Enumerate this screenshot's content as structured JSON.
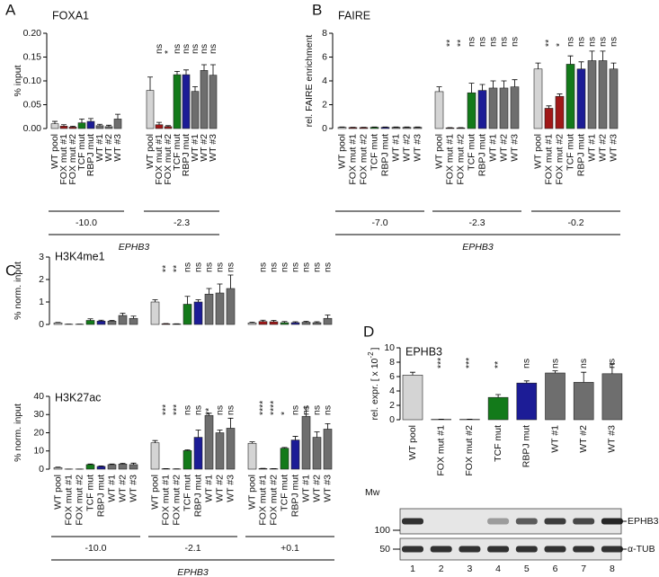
{
  "chart_data": [
    {
      "type": "bar",
      "panel": "A",
      "title": "FOXA1",
      "ylabel": "% input",
      "ylim": [
        0,
        0.2
      ],
      "yticks": [
        {
          "value": 0,
          "label": "0.00"
        },
        0.05,
        {
          "value": 0.1,
          "label": "0.10"
        },
        0.15,
        {
          "value": 0.2,
          "label": "0.20"
        }
      ],
      "colors": [
        "#d4d4d4",
        "#a01818",
        "#a01818",
        "#137a1a",
        "#1c1c96",
        "#6e6e6e",
        "#6e6e6e",
        "#6e6e6e"
      ],
      "group_axis_label": "EPHB3",
      "groups": [
        {
          "label": "-10.0",
          "categories": [
            "WT pool",
            "FOX mut #1",
            "FOX mut #2",
            "TCF mut",
            "RBPJ mut",
            "WT #1",
            "WT #2",
            "WT #3"
          ],
          "values": [
            0.01,
            0.005,
            0.003,
            0.012,
            0.015,
            0.006,
            0.004,
            0.02
          ],
          "errors": [
            0.005,
            0.003,
            0.002,
            0.008,
            0.006,
            0.003,
            0.003,
            0.01
          ],
          "annotations": [
            null,
            null,
            null,
            null,
            null,
            null,
            null,
            null
          ]
        },
        {
          "label": "-2.3",
          "categories": [
            "WT pool",
            "FOX mut #1",
            "FOX mut #2",
            "TCF mut",
            "RBPJ mut",
            "WT #1",
            "WT #2",
            "WT #3"
          ],
          "values": [
            0.08,
            0.008,
            0.004,
            0.113,
            0.113,
            0.078,
            0.122,
            0.112
          ],
          "errors": [
            0.028,
            0.005,
            0.002,
            0.007,
            0.01,
            0.01,
            0.012,
            0.022
          ],
          "annotations": [
            null,
            "ns",
            "*",
            "ns",
            "ns",
            "ns",
            "ns",
            "ns"
          ]
        }
      ]
    },
    {
      "type": "bar",
      "panel": "B",
      "title": "FAIRE",
      "ylabel": "rel. FAIRE enrichment",
      "ylim": [
        0,
        8
      ],
      "yticks": [
        0,
        2,
        4,
        6,
        8
      ],
      "colors": [
        "#d4d4d4",
        "#a01818",
        "#a01818",
        "#137a1a",
        "#1c1c96",
        "#6e6e6e",
        "#6e6e6e",
        "#6e6e6e"
      ],
      "group_axis_label": "EPHB3",
      "groups": [
        {
          "label": "-7.0",
          "categories": [
            "WT pool",
            "FOX mut #1",
            "FOX mut #2",
            "TCF mut",
            "RBPJ mut",
            "WT #1",
            "WT #2",
            "WT #3"
          ],
          "values": [
            0.1,
            0.08,
            0.08,
            0.1,
            0.1,
            0.1,
            0.1,
            0.1
          ],
          "errors": [
            0.03,
            0.02,
            0.02,
            0.03,
            0.03,
            0.03,
            0.03,
            0.03
          ],
          "annotations": [
            null,
            null,
            null,
            null,
            null,
            null,
            null,
            null
          ]
        },
        {
          "label": "-2.3",
          "categories": [
            "WT pool",
            "FOX mut #1",
            "FOX mut #2",
            "TCF mut",
            "RBPJ mut",
            "WT #1",
            "WT #2",
            "WT #3"
          ],
          "values": [
            3.1,
            0.05,
            0.05,
            3.0,
            3.2,
            3.4,
            3.4,
            3.5
          ],
          "errors": [
            0.4,
            0.02,
            0.02,
            0.8,
            0.5,
            0.6,
            0.6,
            0.6
          ],
          "annotations": [
            null,
            "**",
            "**",
            "ns",
            "ns",
            "ns",
            "ns",
            "ns"
          ]
        },
        {
          "label": "-0.2",
          "categories": [
            "WT pool",
            "FOX mut #1",
            "FOX mut #2",
            "TCF mut",
            "RBPJ mut",
            "WT #1",
            "WT #2",
            "WT #3"
          ],
          "values": [
            5.0,
            1.7,
            2.7,
            5.4,
            5.0,
            5.7,
            5.7,
            5.0
          ],
          "errors": [
            0.5,
            0.2,
            0.2,
            0.7,
            0.6,
            0.8,
            0.8,
            0.5
          ],
          "annotations": [
            null,
            "**",
            "*",
            "ns",
            "ns",
            "ns",
            "ns",
            "ns"
          ]
        }
      ]
    },
    {
      "type": "bar",
      "panel": "C",
      "title": "H3K4me1",
      "ylabel": "% norm. input",
      "ylim": [
        0,
        3
      ],
      "yticks": [
        0,
        1,
        2,
        3
      ],
      "colors": [
        "#d4d4d4",
        "#a01818",
        "#a01818",
        "#137a1a",
        "#1c1c96",
        "#6e6e6e",
        "#6e6e6e",
        "#6e6e6e"
      ],
      "groups": [
        {
          "values": [
            0.07,
            0.01,
            0.01,
            0.18,
            0.15,
            0.15,
            0.4,
            0.27
          ],
          "errors": [
            0.02,
            0.005,
            0.005,
            0.07,
            0.04,
            0.03,
            0.1,
            0.1
          ],
          "annotations": [
            null,
            null,
            null,
            null,
            null,
            null,
            null,
            null
          ]
        },
        {
          "values": [
            1.0,
            0.03,
            0.02,
            0.9,
            1.0,
            1.35,
            1.4,
            1.6
          ],
          "errors": [
            0.1,
            0.01,
            0.01,
            0.35,
            0.1,
            0.25,
            0.4,
            0.6
          ],
          "annotations": [
            null,
            "**",
            "**",
            "ns",
            "ns",
            "ns",
            "ns",
            "ns"
          ]
        },
        {
          "values": [
            0.07,
            0.13,
            0.12,
            0.08,
            0.08,
            0.1,
            0.08,
            0.27
          ],
          "errors": [
            0.03,
            0.06,
            0.06,
            0.05,
            0.04,
            0.04,
            0.04,
            0.15
          ],
          "annotations": [
            null,
            "ns",
            "ns",
            "ns",
            "ns",
            "ns",
            "ns",
            "ns"
          ]
        }
      ]
    },
    {
      "type": "bar",
      "title": "H3K27ac",
      "ylabel": "% norm. input",
      "ylim": [
        0,
        40
      ],
      "yticks": [
        0,
        10,
        20,
        30,
        40
      ],
      "colors": [
        "#d4d4d4",
        "#a01818",
        "#a01818",
        "#137a1a",
        "#1c1c96",
        "#6e6e6e",
        "#6e6e6e",
        "#6e6e6e"
      ],
      "group_axis_label": "EPHB3",
      "groups": [
        {
          "label": "-10.0",
          "categories": [
            "WT pool",
            "FOX mut #1",
            "FOX mut #2",
            "TCF mut",
            "RBPJ mut",
            "WT #1",
            "WT #2",
            "WT #3"
          ],
          "values": [
            0.8,
            0.05,
            0.05,
            2.5,
            1.5,
            2.5,
            2.8,
            2.5
          ],
          "errors": [
            0.3,
            0.02,
            0.02,
            0.3,
            0.3,
            0.3,
            0.4,
            0.8
          ],
          "annotations": [
            null,
            null,
            null,
            null,
            null,
            null,
            null,
            null
          ]
        },
        {
          "label": "-2.1",
          "categories": [
            "WT pool",
            "FOX mut #1",
            "FOX mut #2",
            "TCF mut",
            "RBPJ mut",
            "WT #1",
            "WT #2",
            "WT #3"
          ],
          "values": [
            14.5,
            0.2,
            0.1,
            10.2,
            17.5,
            29.5,
            20,
            22.5
          ],
          "errors": [
            1.2,
            0.1,
            0.05,
            0.4,
            4,
            1.2,
            1.5,
            5.5
          ],
          "annotations": [
            null,
            "***",
            "***",
            "ns",
            "ns",
            "**",
            "ns",
            "ns"
          ]
        },
        {
          "label": "+0.1",
          "categories": [
            "WT pool",
            "FOX mut #1",
            "FOX mut #2",
            "TCF mut",
            "RBPJ mut",
            "WT #1",
            "WT #2",
            "WT #3"
          ],
          "values": [
            14.2,
            0.3,
            0.2,
            11.5,
            16,
            29,
            17.5,
            22
          ],
          "errors": [
            0.8,
            0.1,
            0.1,
            0.4,
            2,
            5,
            3,
            3
          ],
          "annotations": [
            null,
            "****",
            "****",
            "*",
            "ns",
            "ns",
            "ns",
            "ns"
          ]
        }
      ]
    },
    {
      "type": "bar",
      "panel": "D",
      "title": "EPHB3",
      "ylabel": "rel. expr. [ x 10",
      "ylabel_superscript": "-2",
      "ylabel_suffix": "]",
      "ylim": [
        0,
        10
      ],
      "yticks": [
        0,
        2,
        4,
        6,
        8,
        10
      ],
      "colors": [
        "#d4d4d4",
        "#a01818",
        "#a01818",
        "#137a1a",
        "#1c1c96",
        "#6e6e6e",
        "#6e6e6e",
        "#6e6e6e"
      ],
      "groups": [
        {
          "categories": [
            "WT pool",
            "FOX mut #1",
            "FOX mut #2",
            "TCF mut",
            "RBPJ mut",
            "WT #1",
            "WT #2",
            "WT #3"
          ],
          "values": [
            6.2,
            0.05,
            0.05,
            3.1,
            5.1,
            6.5,
            5.2,
            6.4
          ],
          "errors": [
            0.4,
            0.02,
            0.02,
            0.4,
            0.3,
            0.3,
            1.4,
            1.4
          ],
          "annotations": [
            null,
            "***",
            "***",
            "**",
            "ns",
            "ns",
            "ns",
            "ns"
          ]
        }
      ],
      "blot": {
        "mw_label": "Mw",
        "markers": [
          "100",
          "50"
        ],
        "bands": [
          "EPHB3",
          "α-TUB"
        ],
        "lanes": [
          "1",
          "2",
          "3",
          "4",
          "5",
          "6",
          "7",
          "8"
        ]
      }
    }
  ]
}
